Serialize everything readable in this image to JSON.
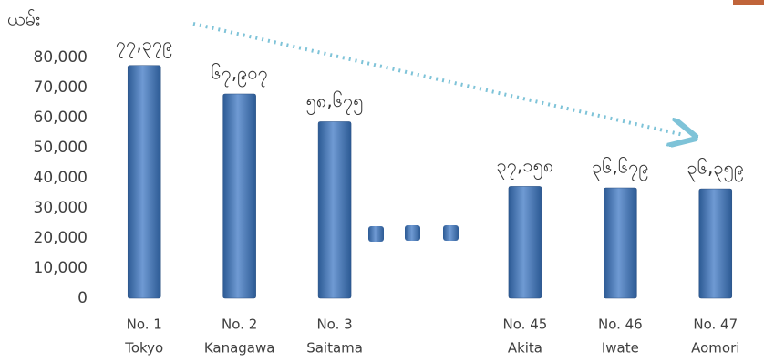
{
  "chart_data": {
    "type": "bar",
    "y_label": "ယမ်း",
    "categories": [
      [
        "No. 1",
        "Tokyo"
      ],
      [
        "No. 2",
        "Kanagawa"
      ],
      [
        "No. 3",
        "Saitama"
      ],
      null,
      [
        "No. 45",
        "Akita"
      ],
      [
        "No. 46",
        "Iwate"
      ],
      [
        "No. 47",
        "Aomori"
      ]
    ],
    "values": [
      77379,
      67907,
      58675,
      null,
      37158,
      36679,
      36359
    ],
    "value_labels": [
      "၇၇,၃၇၉",
      "၆၇,၉၀၇",
      "၅၈,၆၇၅",
      null,
      "၃၇,၁၅၈",
      "၃၆,၆၇၉",
      "၃၆,၃၅၉"
    ],
    "color": "#4a7ebb",
    "ylim": [
      0,
      87000
    ],
    "yticks": [
      0,
      {
        "value": 10000,
        "label": "10,000"
      },
      {
        "value": 20000,
        "label": "20,000"
      },
      {
        "value": 30000,
        "label": "30,000"
      },
      {
        "value": 40000,
        "label": "40,000"
      },
      {
        "value": 50000,
        "label": "50,000"
      },
      {
        "value": 60000,
        "label": "60,000"
      },
      {
        "value": 70000,
        "label": "70,000"
      },
      {
        "value": 80000,
        "label": "80,000"
      }
    ]
  }
}
